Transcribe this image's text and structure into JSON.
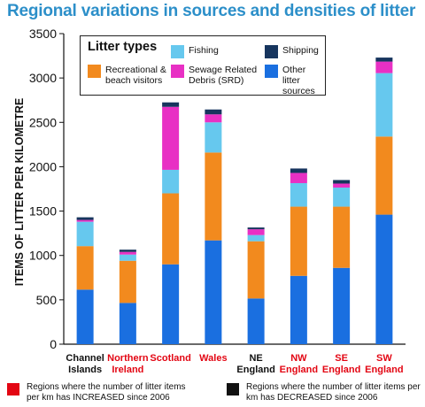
{
  "chart_data": {
    "type": "bar",
    "stacked": true,
    "title": "Regional variations in sources and densities of litter",
    "ylabel": "ITEMS OF LITTER PER KILOMETRE",
    "ylim": [
      0,
      3500
    ],
    "yticks": [
      0,
      500,
      1000,
      1500,
      2000,
      2500,
      3000,
      3500
    ],
    "categories": [
      {
        "line1": "Channel",
        "line2": "Islands",
        "color": "#111111"
      },
      {
        "line1": "Northern",
        "line2": "Ireland",
        "color": "#e30613"
      },
      {
        "line1": "Scotland",
        "line2": "",
        "color": "#e30613"
      },
      {
        "line1": "Wales",
        "line2": "",
        "color": "#e30613"
      },
      {
        "line1": "NE",
        "line2": "England",
        "color": "#111111"
      },
      {
        "line1": "NW",
        "line2": "England",
        "color": "#e30613"
      },
      {
        "line1": "SE",
        "line2": "England",
        "color": "#e30613"
      },
      {
        "line1": "SW",
        "line2": "England",
        "color": "#e30613"
      }
    ],
    "series": [
      {
        "name": "Other litter sources",
        "color": "#1a6fe0",
        "values": [
          615,
          465,
          900,
          1170,
          515,
          770,
          860,
          1460
        ]
      },
      {
        "name": "Recreational & beach visitors",
        "color": "#f28a1e",
        "values": [
          490,
          475,
          800,
          990,
          645,
          780,
          690,
          880
        ]
      },
      {
        "name": "Fishing",
        "color": "#66c8ee",
        "values": [
          275,
          70,
          265,
          340,
          70,
          265,
          215,
          715
        ]
      },
      {
        "name": "Sewage Related Debris (SRD)",
        "color": "#e830c4",
        "values": [
          20,
          30,
          710,
          90,
          65,
          115,
          45,
          130
        ]
      },
      {
        "name": "Shipping",
        "color": "#17355e",
        "values": [
          30,
          25,
          50,
          55,
          20,
          50,
          40,
          45
        ]
      }
    ],
    "grid": false,
    "legend": {
      "title": "Litter types",
      "placement": "top-center",
      "items": [
        {
          "label": "Recreational & beach visitors",
          "color": "#f28a1e"
        },
        {
          "label": "Fishing",
          "color": "#66c8ee"
        },
        {
          "label": "Sewage Related Debris (SRD)",
          "color": "#e830c4"
        },
        {
          "label": "Shipping",
          "color": "#17355e"
        },
        {
          "label": "Other litter sources",
          "color": "#1a6fe0"
        }
      ]
    }
  },
  "legend_labels": {
    "title": "Litter types",
    "recreational": "Recreational & beach visitors",
    "fishing": "Fishing",
    "sewage": "Sewage Related Debris (SRD)",
    "shipping": "Shipping",
    "other": "Other litter sources"
  },
  "footnotes": {
    "increased": "Regions where the number of litter items per km has INCREASED since 2006",
    "increased_color": "#e30613",
    "decreased": "Regions where the number of litter items per km has DECREASED since 2006",
    "decreased_color": "#111111"
  }
}
